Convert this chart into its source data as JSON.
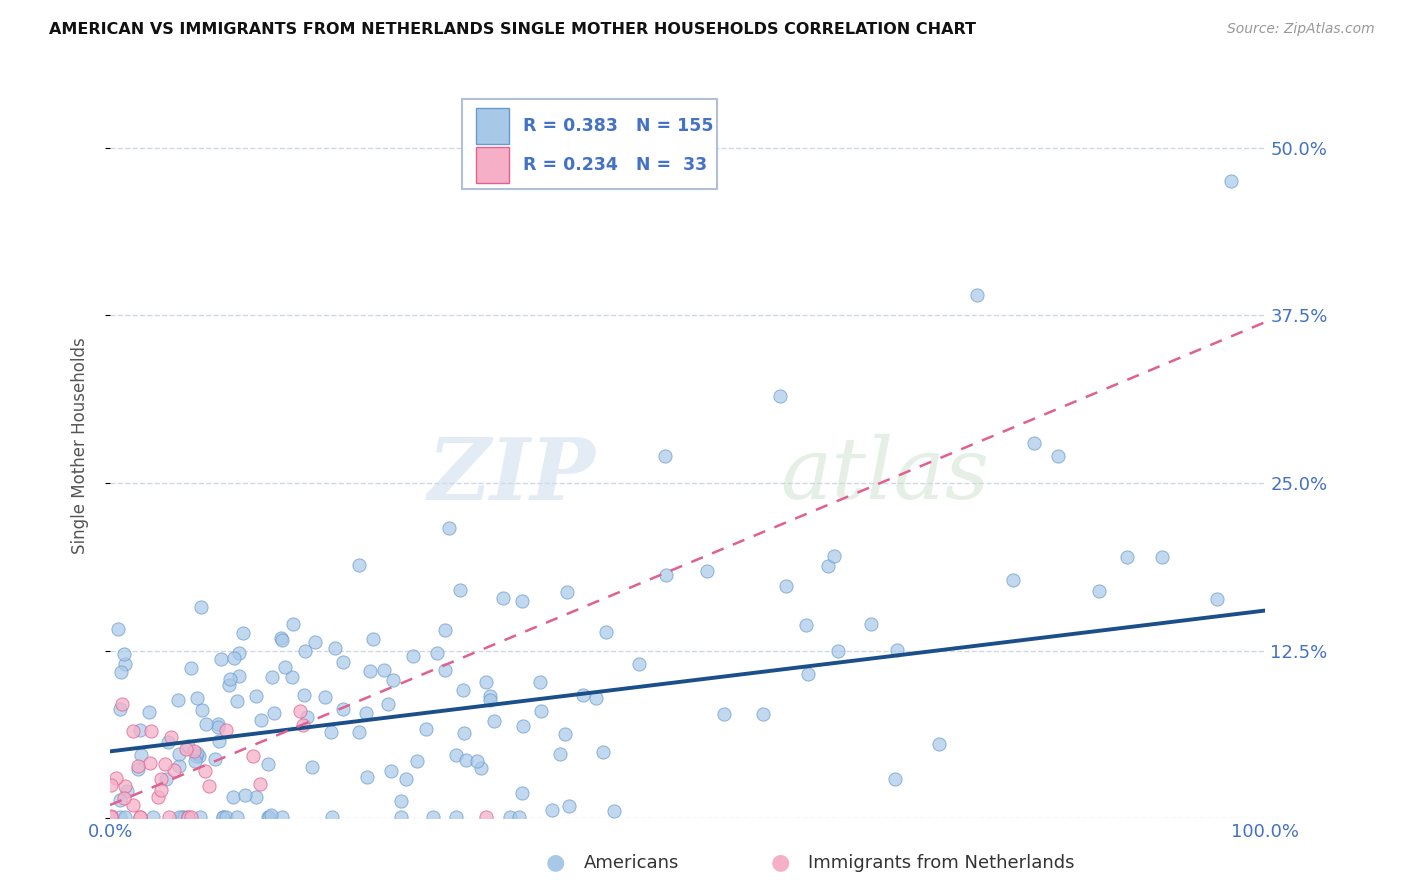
{
  "title": "AMERICAN VS IMMIGRANTS FROM NETHERLANDS SINGLE MOTHER HOUSEHOLDS CORRELATION CHART",
  "source": "Source: ZipAtlas.com",
  "ylabel": "Single Mother Households",
  "series": [
    {
      "name": "Americans",
      "color": "#a8c8e8",
      "edge_color": "#6699cc",
      "R": 0.383,
      "N": 155,
      "trend_color": "#1a4f8a",
      "trend_style": "solid",
      "trend_start_y": 0.05,
      "trend_end_y": 0.155
    },
    {
      "name": "Immigrants from Netherlands",
      "color": "#f5b0c8",
      "edge_color": "#e06090",
      "R": 0.234,
      "N": 33,
      "trend_color": "#e06090",
      "trend_style": "dashed",
      "trend_start_y": 0.01,
      "trend_end_y": 0.37
    }
  ],
  "x_min": 0.0,
  "x_max": 1.0,
  "y_min": 0.0,
  "y_max": 0.5556,
  "yticks": [
    0.0,
    0.125,
    0.25,
    0.375,
    0.5
  ],
  "ytick_labels": [
    "",
    "12.5%",
    "25.0%",
    "37.5%",
    "50.0%"
  ],
  "xticks": [
    0.0,
    0.25,
    0.5,
    0.75,
    1.0
  ],
  "xtick_labels": [
    "0.0%",
    "",
    "",
    "",
    "100.0%"
  ],
  "watermark_zip": "ZIP",
  "watermark_atlas": "atlas",
  "background_color": "#ffffff",
  "grid_color": "#d0d8e8",
  "tick_color": "#4472c4",
  "legend_R1": "0.383",
  "legend_N1": "155",
  "legend_R2": "0.234",
  "legend_N2": "33"
}
